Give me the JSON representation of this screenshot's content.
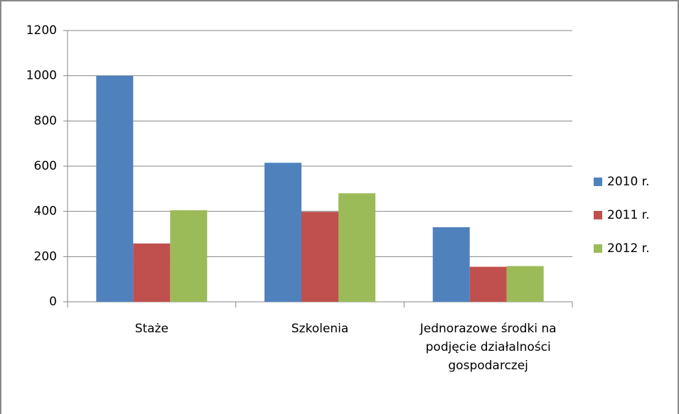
{
  "chart_data": {
    "type": "bar",
    "categories": [
      "Staże",
      "Szkolenia",
      "Jednorazowe środki na podjęcie działalności gospodarczej"
    ],
    "series": [
      {
        "name": "2010 r.",
        "color": "#4f81bd",
        "values": [
          1000,
          615,
          330
        ]
      },
      {
        "name": "2011 r.",
        "color": "#c0504d",
        "values": [
          258,
          398,
          155
        ]
      },
      {
        "name": "2012 r.",
        "color": "#9bbb59",
        "values": [
          405,
          480,
          158
        ]
      }
    ],
    "ylim": [
      0,
      1200
    ],
    "yticks": [
      0,
      200,
      400,
      600,
      800,
      1000,
      1200
    ],
    "grid": true,
    "legend": "right"
  }
}
